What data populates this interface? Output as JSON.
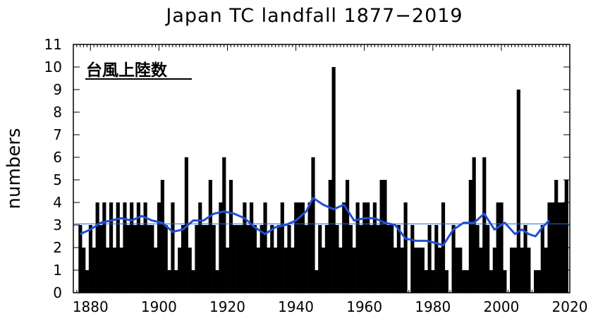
{
  "chart_data": {
    "type": "bar",
    "title": "Japan TC landfall 1877−2019",
    "annotation": "台風上陸数",
    "xlabel": "",
    "ylabel": "numbers",
    "xlim": [
      1875,
      2020
    ],
    "ylim": [
      0,
      11
    ],
    "x_ticks": [
      "1880",
      "1900",
      "1920",
      "1940",
      "1960",
      "1980",
      "2000",
      "2020"
    ],
    "y_ticks": [
      "0",
      "1",
      "2",
      "3",
      "4",
      "5",
      "6",
      "7",
      "8",
      "9",
      "10",
      "11"
    ],
    "colors": {
      "bars": "#000000",
      "moving_average": "#1f4fd8",
      "mean_line": "#2a6fd6"
    },
    "mean": 3.05,
    "series": [
      {
        "years": [
          1877,
          1878,
          1879,
          1880,
          1881,
          1882,
          1883,
          1884,
          1885,
          1886,
          1887,
          1888,
          1889,
          1890,
          1891,
          1892,
          1893,
          1894,
          1895,
          1896,
          1897,
          1898,
          1899,
          1900,
          1901,
          1902,
          1903,
          1904,
          1905,
          1906,
          1907,
          1908,
          1909,
          1910,
          1911,
          1912,
          1913,
          1914,
          1915,
          1916,
          1917,
          1918,
          1919,
          1920,
          1921,
          1922,
          1923,
          1924,
          1925,
          1926,
          1927,
          1928,
          1929,
          1930,
          1931,
          1932,
          1933,
          1934,
          1935,
          1936,
          1937,
          1938,
          1939,
          1940,
          1941,
          1942,
          1943,
          1944,
          1945,
          1946,
          1947,
          1948,
          1949,
          1950,
          1951,
          1952,
          1953,
          1954,
          1955,
          1956,
          1957,
          1958,
          1959,
          1960,
          1961,
          1962,
          1963,
          1964,
          1965,
          1966,
          1967,
          1968,
          1969,
          1970,
          1971,
          1972,
          1973,
          1974,
          1975,
          1976,
          1977,
          1978,
          1979,
          1980,
          1981,
          1982,
          1983,
          1984,
          1985,
          1986,
          1987,
          1988,
          1989,
          1990,
          1991,
          1992,
          1993,
          1994,
          1995,
          1996,
          1997,
          1998,
          1999,
          2000,
          2001,
          2002,
          2003,
          2004,
          2005,
          2006,
          2007,
          2008,
          2009,
          2010,
          2011,
          2012,
          2013,
          2014,
          2015,
          2016,
          2017,
          2018,
          2019
        ],
        "values": [
          3,
          2,
          1,
          3,
          2,
          4,
          3,
          4,
          2,
          4,
          2,
          4,
          2,
          4,
          3,
          4,
          3,
          4,
          3,
          4,
          3,
          3,
          2,
          4,
          5,
          3,
          1,
          4,
          1,
          2,
          3,
          6,
          2,
          1,
          3,
          4,
          3,
          3,
          5,
          3,
          1,
          4,
          6,
          2,
          5,
          3,
          3,
          3,
          4,
          3,
          4,
          3,
          2,
          3,
          4,
          2,
          3,
          2,
          3,
          4,
          2,
          3,
          2,
          4,
          4,
          4,
          3,
          4,
          6,
          1,
          3,
          2,
          3,
          5,
          10,
          3,
          2,
          4,
          5,
          3,
          2,
          4,
          3,
          4,
          4,
          3,
          4,
          3,
          5,
          5,
          3,
          3,
          2,
          3,
          2,
          4,
          0,
          3,
          2,
          2,
          2,
          1,
          3,
          1,
          3,
          2,
          4,
          1,
          0,
          3,
          2,
          2,
          1,
          1,
          5,
          6,
          3,
          2,
          6,
          3,
          1,
          2,
          4,
          4,
          1,
          0,
          2,
          2,
          9,
          2,
          3,
          2,
          0,
          1,
          1,
          3,
          2,
          4,
          4,
          5,
          4,
          4,
          5
        ]
      },
      {
        "name": "",
        "x": [
          1877,
          1880,
          1883,
          1886,
          1889,
          1892,
          1895,
          1898,
          1901,
          1904,
          1907,
          1910,
          1913,
          1916,
          1919,
          1922,
          1925,
          1928,
          1931,
          1934,
          1937,
          1940,
          1943,
          1945,
          1948,
          1951,
          1954,
          1957,
          1960,
          1963,
          1966,
          1969,
          1972,
          1975,
          1978,
          1981,
          1983,
          1986,
          1989,
          1992,
          1995,
          1998,
          2001,
          2004,
          2006,
          2008,
          2010,
          2012,
          2014
        ],
        "values": [
          2.6,
          2.8,
          3.1,
          3.2,
          3.3,
          3.2,
          3.4,
          3.2,
          3.1,
          2.7,
          2.8,
          3.2,
          3.2,
          3.5,
          3.6,
          3.5,
          3.3,
          2.9,
          2.6,
          2.9,
          3.0,
          3.2,
          3.6,
          4.2,
          3.9,
          3.7,
          3.9,
          3.2,
          3.3,
          3.3,
          3.1,
          3.0,
          2.4,
          2.3,
          2.3,
          2.2,
          2.1,
          2.8,
          3.1,
          3.1,
          3.5,
          2.8,
          3.1,
          2.6,
          2.8,
          2.6,
          2.5,
          2.9,
          3.2
        ]
      }
    ]
  }
}
